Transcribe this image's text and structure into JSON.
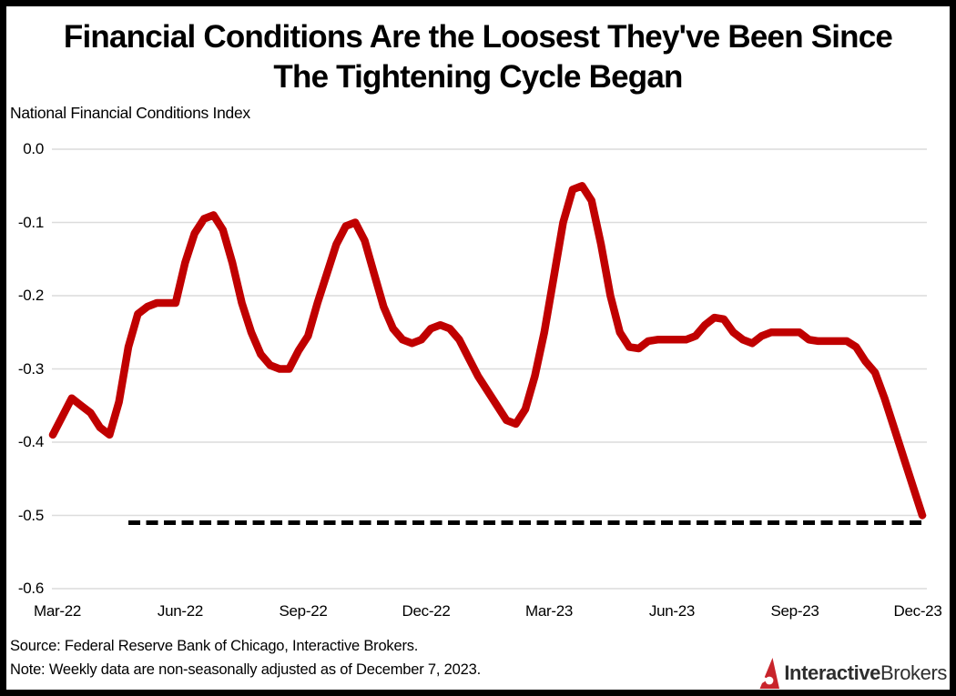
{
  "header": {
    "title_line1": "Financial Conditions Are the Loosest They've Been Since",
    "title_line2": "The Tightening Cycle Began",
    "subtitle": "National Financial Conditions Index"
  },
  "footer": {
    "source": "Source: Federal Reserve Bank of Chicago, Interactive Brokers.",
    "note": "Note: Weekly data are non-seasonally adjusted as of December 7, 2023.",
    "logo": {
      "icon": "interactive-brokers-flame-icon",
      "icon_color": "#C8242B",
      "brand_bold": "Interactive",
      "brand_regular": "Brokers",
      "text_color": "#2E2E2E"
    }
  },
  "chart_data": {
    "type": "line",
    "title": "Financial Conditions Are the Loosest They've Been Since The Tightening Cycle Began",
    "ylabel": "National Financial Conditions Index",
    "x_tick_labels": [
      "Mar-22",
      "Jun-22",
      "Sep-22",
      "Dec-22",
      "Mar-23",
      "Jun-23",
      "Sep-23",
      "Dec-23"
    ],
    "y_tick_labels": [
      "0.0",
      "-0.1",
      "-0.2",
      "-0.3",
      "-0.4",
      "-0.5",
      "-0.6"
    ],
    "ylim": [
      -0.6,
      0.0
    ],
    "x_range": [
      "Mar-22",
      "Dec-23"
    ],
    "frequency": "weekly",
    "grid": "horizontal-only",
    "legend": "none",
    "line_color": "#C00000",
    "grid_color": "#DCDCDC",
    "series": [
      {
        "name": "National Financial Conditions Index",
        "values": [
          -0.39,
          -0.365,
          -0.34,
          -0.35,
          -0.36,
          -0.38,
          -0.39,
          -0.345,
          -0.27,
          -0.225,
          -0.215,
          -0.21,
          -0.21,
          -0.21,
          -0.155,
          -0.115,
          -0.095,
          -0.09,
          -0.11,
          -0.155,
          -0.21,
          -0.25,
          -0.28,
          -0.295,
          -0.3,
          -0.3,
          -0.275,
          -0.255,
          -0.21,
          -0.17,
          -0.13,
          -0.105,
          -0.1,
          -0.125,
          -0.17,
          -0.215,
          -0.245,
          -0.26,
          -0.265,
          -0.26,
          -0.245,
          -0.24,
          -0.245,
          -0.26,
          -0.285,
          -0.31,
          -0.33,
          -0.35,
          -0.37,
          -0.375,
          -0.355,
          -0.31,
          -0.25,
          -0.175,
          -0.1,
          -0.055,
          -0.05,
          -0.07,
          -0.13,
          -0.2,
          -0.25,
          -0.27,
          -0.272,
          -0.262,
          -0.26,
          -0.26,
          -0.26,
          -0.26,
          -0.255,
          -0.24,
          -0.23,
          -0.232,
          -0.25,
          -0.26,
          -0.265,
          -0.255,
          -0.25,
          -0.25,
          -0.25,
          -0.25,
          -0.26,
          -0.262,
          -0.262,
          -0.262,
          -0.262,
          -0.27,
          -0.29,
          -0.305,
          -0.34,
          -0.38,
          -0.42,
          -0.46,
          -0.5
        ]
      }
    ],
    "reference_line": {
      "value": -0.51,
      "style": "dashed",
      "color": "#000000",
      "x_start_week_index": 8,
      "x_end_week_index": 92
    }
  }
}
